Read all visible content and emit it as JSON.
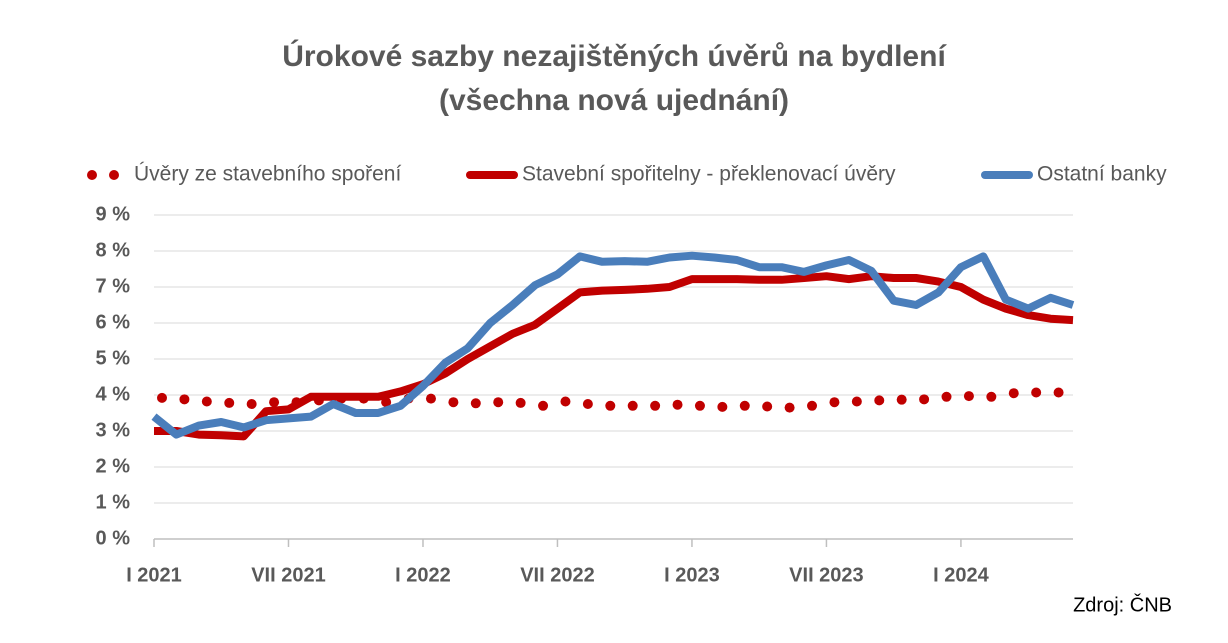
{
  "chart_data": {
    "type": "line",
    "title": "Úrokové sazby nezajištěných úvěrů na bydlení",
    "subtitle": "(všechna nová ujednání)",
    "source": "Zdroj: ČNB",
    "categories": [
      "I 2021",
      null,
      null,
      null,
      null,
      null,
      "VII 2021",
      null,
      null,
      null,
      null,
      null,
      "I 2022",
      null,
      null,
      null,
      null,
      null,
      "VII 2022",
      null,
      null,
      null,
      null,
      null,
      "I 2023",
      null,
      null,
      null,
      null,
      null,
      "VII 2023",
      null,
      null,
      null,
      null,
      null,
      "I 2024",
      null,
      null,
      null,
      null,
      null
    ],
    "series": [
      {
        "name": "Úvěry ze stavebního spoření",
        "color": "#c00000",
        "style": "dotted",
        "values": [
          3.92,
          3.88,
          3.82,
          3.78,
          3.75,
          3.8,
          3.8,
          3.85,
          3.9,
          3.9,
          3.8,
          3.9,
          3.9,
          3.8,
          3.77,
          3.8,
          3.78,
          3.7,
          3.82,
          3.75,
          3.7,
          3.7,
          3.7,
          3.73,
          3.7,
          3.67,
          3.7,
          3.68,
          3.65,
          3.7,
          3.8,
          3.82,
          3.85,
          3.87,
          3.88,
          3.95,
          3.97,
          3.95,
          4.05,
          4.07,
          4.07,
          null
        ]
      },
      {
        "name": "Stavební spořitelny - překlenovací úvěry",
        "color": "#c00000",
        "style": "solid",
        "values": [
          3.0,
          3.0,
          2.9,
          2.88,
          2.85,
          3.55,
          3.6,
          3.95,
          3.95,
          3.95,
          3.95,
          4.1,
          4.3,
          4.6,
          5.0,
          5.35,
          5.7,
          5.95,
          6.4,
          6.85,
          6.9,
          6.92,
          6.95,
          7.0,
          7.22,
          7.22,
          7.22,
          7.2,
          7.2,
          7.25,
          7.3,
          7.22,
          7.3,
          7.25,
          7.25,
          7.15,
          7.0,
          6.65,
          6.4,
          6.22,
          6.12,
          6.08
        ]
      },
      {
        "name": "Ostatní banky",
        "color": "#4a7ebb",
        "style": "solid",
        "values": [
          3.4,
          2.9,
          3.15,
          3.25,
          3.1,
          3.3,
          3.35,
          3.4,
          3.75,
          3.5,
          3.5,
          3.7,
          4.25,
          4.9,
          5.3,
          6.0,
          6.5,
          7.05,
          7.35,
          7.85,
          7.7,
          7.72,
          7.7,
          7.82,
          7.87,
          7.82,
          7.75,
          7.55,
          7.55,
          7.42,
          7.6,
          7.75,
          7.45,
          6.62,
          6.5,
          6.85,
          7.55,
          7.85,
          6.65,
          6.4,
          6.7,
          6.5
        ]
      }
    ],
    "ylim": [
      0,
      9
    ],
    "yticks": [
      {
        "value": 0,
        "label": "0 %"
      },
      {
        "value": 1,
        "label": "1 %"
      },
      {
        "value": 2,
        "label": "2 %"
      },
      {
        "value": 3,
        "label": "3 %"
      },
      {
        "value": 4,
        "label": "4 %"
      },
      {
        "value": 5,
        "label": "5 %"
      },
      {
        "value": 6,
        "label": "6 %"
      },
      {
        "value": 7,
        "label": "7 %"
      },
      {
        "value": 8,
        "label": "8 %"
      },
      {
        "value": 9,
        "label": "9 %"
      }
    ],
    "grid": true,
    "legend": "top"
  }
}
